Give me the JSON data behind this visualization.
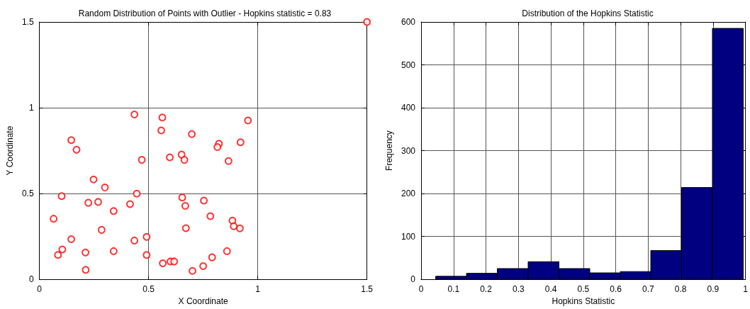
{
  "chart_data": [
    {
      "type": "scatter",
      "title": "Random Distribution of Points with Outlier - Hopkins statistic = 0.83",
      "xlabel": "X Coordinate",
      "ylabel": "Y Coordinate",
      "marker": "circle",
      "grid": true,
      "x": [
        0.435,
        0.563,
        0.558,
        0.698,
        0.146,
        0.17,
        0.469,
        0.597,
        0.651,
        0.664,
        0.248,
        0.3,
        0.102,
        0.446,
        0.224,
        0.269,
        0.415,
        0.654,
        0.668,
        0.753,
        0.065,
        0.34,
        0.285,
        0.671,
        0.146,
        0.491,
        0.435,
        0.105,
        0.085,
        0.211,
        0.34,
        0.491,
        0.212,
        0.565,
        0.6,
        0.617,
        0.701,
        0.75,
        0.955,
        0.921,
        0.822,
        0.815,
        0.866,
        0.783,
        0.884,
        0.89,
        0.918,
        0.859,
        0.791,
        1.5
      ],
      "series": [
        {
          "color": "#ff0000",
          "values": [
            0.961,
            0.943,
            0.868,
            0.846,
            0.811,
            0.755,
            0.696,
            0.711,
            0.727,
            0.696,
            0.582,
            0.535,
            0.485,
            0.499,
            0.446,
            0.451,
            0.438,
            0.477,
            0.428,
            0.459,
            0.353,
            0.398,
            0.288,
            0.298,
            0.234,
            0.247,
            0.226,
            0.174,
            0.142,
            0.156,
            0.164,
            0.142,
            0.055,
            0.093,
            0.104,
            0.104,
            0.049,
            0.077,
            0.926,
            0.799,
            0.79,
            0.771,
            0.689,
            0.368,
            0.342,
            0.309,
            0.297,
            0.164,
            0.128,
            1.5
          ]
        }
      ],
      "xlim": [
        0,
        1.5
      ],
      "xticks": [
        0,
        0.5,
        1,
        1.5
      ],
      "ylim": [
        0,
        1.5
      ],
      "yticks": [
        0,
        0.5,
        1,
        1.5
      ]
    },
    {
      "type": "histogram",
      "title": "Distribution of the Hopkins Statistic",
      "xlabel": "Hopkins Statistic",
      "ylabel": "Frequency",
      "grid": true,
      "color": "#000080",
      "bins": [
        0.045,
        0.14,
        0.235,
        0.33,
        0.425,
        0.52,
        0.614,
        0.708,
        0.803,
        0.898,
        0.993
      ],
      "values": [
        7,
        14,
        25,
        41,
        25,
        15,
        18,
        67,
        214,
        585
      ],
      "xlim": [
        0,
        1
      ],
      "xticks": [
        0,
        0.1,
        0.2,
        0.3,
        0.4,
        0.5,
        0.6,
        0.7,
        0.8,
        0.9,
        1
      ],
      "ylim": [
        0,
        600
      ],
      "yticks": [
        0,
        100,
        200,
        300,
        400,
        500,
        600
      ]
    }
  ]
}
